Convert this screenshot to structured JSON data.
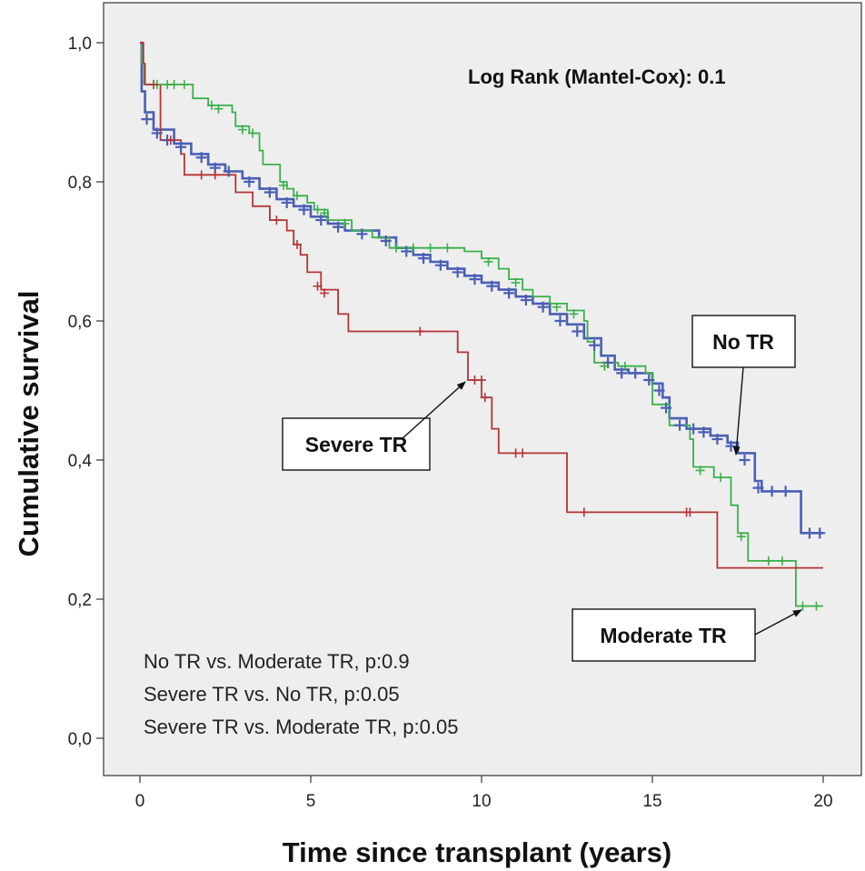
{
  "chart_data": {
    "type": "line",
    "subtype": "kaplan-meier",
    "title": "",
    "xlabel": "Time since transplant (years)",
    "ylabel": "Cumulative survival",
    "xlim": [
      0,
      20
    ],
    "ylim": [
      0,
      1
    ],
    "x_ticks": [
      0,
      5,
      10,
      15,
      20
    ],
    "x_tick_labels": [
      "0",
      "5",
      "10",
      "15",
      "20"
    ],
    "y_ticks": [
      0,
      0.2,
      0.4,
      0.6,
      0.8,
      1.0
    ],
    "y_tick_labels": [
      "0,0",
      "0,2",
      "0,4",
      "0,6",
      "0,8",
      "1,0"
    ],
    "grid": false,
    "annotation_top": "Log Rank (Mantel-Cox): 0.1",
    "annotations_bottom": [
      "No TR vs. Moderate TR, p:0.9",
      "Severe TR vs. No TR, p:0.05",
      "Severe TR vs. Moderate TR, p:0.05"
    ],
    "series": [
      {
        "name": "No TR",
        "color": "#4a5fb4",
        "points": [
          [
            0,
            1.0
          ],
          [
            0.05,
            0.93
          ],
          [
            0.15,
            0.9
          ],
          [
            0.4,
            0.875
          ],
          [
            1,
            0.855
          ],
          [
            1.5,
            0.84
          ],
          [
            2,
            0.825
          ],
          [
            2.5,
            0.815
          ],
          [
            3,
            0.805
          ],
          [
            3.5,
            0.79
          ],
          [
            4,
            0.775
          ],
          [
            4.5,
            0.765
          ],
          [
            5,
            0.75
          ],
          [
            5.5,
            0.74
          ],
          [
            6,
            0.73
          ],
          [
            7,
            0.72
          ],
          [
            7.5,
            0.705
          ],
          [
            8,
            0.695
          ],
          [
            8.5,
            0.685
          ],
          [
            9,
            0.675
          ],
          [
            9.5,
            0.665
          ],
          [
            10,
            0.655
          ],
          [
            10.5,
            0.645
          ],
          [
            11,
            0.635
          ],
          [
            11.5,
            0.625
          ],
          [
            12,
            0.61
          ],
          [
            12.5,
            0.595
          ],
          [
            13,
            0.575
          ],
          [
            13.5,
            0.55
          ],
          [
            13.9,
            0.53
          ],
          [
            14.3,
            0.525
          ],
          [
            15,
            0.51
          ],
          [
            15.3,
            0.49
          ],
          [
            15.5,
            0.46
          ],
          [
            16,
            0.445
          ],
          [
            16.7,
            0.435
          ],
          [
            17.2,
            0.425
          ],
          [
            17.5,
            0.41
          ],
          [
            18,
            0.37
          ],
          [
            18.2,
            0.355
          ],
          [
            19.3,
            0.355
          ],
          [
            19.35,
            0.295
          ],
          [
            20,
            0.295
          ]
        ],
        "censor_marks": [
          [
            0.2,
            0.89
          ],
          [
            0.5,
            0.87
          ],
          [
            0.8,
            0.86
          ],
          [
            1.2,
            0.85
          ],
          [
            1.8,
            0.835
          ],
          [
            2.2,
            0.82
          ],
          [
            2.6,
            0.815
          ],
          [
            3.2,
            0.8
          ],
          [
            3.8,
            0.785
          ],
          [
            4.3,
            0.77
          ],
          [
            4.8,
            0.76
          ],
          [
            5.3,
            0.745
          ],
          [
            5.8,
            0.735
          ],
          [
            6.5,
            0.725
          ],
          [
            7.2,
            0.715
          ],
          [
            7.8,
            0.7
          ],
          [
            8.3,
            0.69
          ],
          [
            8.8,
            0.68
          ],
          [
            9.3,
            0.67
          ],
          [
            9.8,
            0.66
          ],
          [
            10.3,
            0.65
          ],
          [
            10.8,
            0.64
          ],
          [
            11.3,
            0.63
          ],
          [
            11.8,
            0.62
          ],
          [
            12.3,
            0.6
          ],
          [
            12.8,
            0.585
          ],
          [
            13.3,
            0.565
          ],
          [
            13.7,
            0.54
          ],
          [
            14.1,
            0.525
          ],
          [
            14.5,
            0.525
          ],
          [
            14.9,
            0.515
          ],
          [
            15.2,
            0.5
          ],
          [
            15.4,
            0.475
          ],
          [
            15.8,
            0.45
          ],
          [
            16.2,
            0.445
          ],
          [
            16.5,
            0.44
          ],
          [
            16.9,
            0.43
          ],
          [
            17.3,
            0.42
          ],
          [
            17.7,
            0.4
          ],
          [
            18.1,
            0.36
          ],
          [
            18.5,
            0.355
          ],
          [
            18.9,
            0.355
          ],
          [
            19.6,
            0.295
          ],
          [
            19.9,
            0.295
          ]
        ]
      },
      {
        "name": "Moderate TR",
        "color": "#3ab04a",
        "points": [
          [
            0,
            1.0
          ],
          [
            0.05,
            0.97
          ],
          [
            0.12,
            0.94
          ],
          [
            1.5,
            0.94
          ],
          [
            1.55,
            0.92
          ],
          [
            2,
            0.91
          ],
          [
            2.7,
            0.9
          ],
          [
            2.8,
            0.88
          ],
          [
            3.2,
            0.87
          ],
          [
            3.5,
            0.845
          ],
          [
            3.6,
            0.825
          ],
          [
            4.1,
            0.8
          ],
          [
            4.3,
            0.79
          ],
          [
            4.5,
            0.78
          ],
          [
            4.9,
            0.77
          ],
          [
            5.1,
            0.76
          ],
          [
            5.5,
            0.745
          ],
          [
            6.2,
            0.73
          ],
          [
            6.8,
            0.72
          ],
          [
            7.3,
            0.705
          ],
          [
            8.2,
            0.705
          ],
          [
            9.5,
            0.7
          ],
          [
            10,
            0.69
          ],
          [
            10.5,
            0.675
          ],
          [
            10.8,
            0.66
          ],
          [
            11.2,
            0.645
          ],
          [
            11.5,
            0.635
          ],
          [
            12,
            0.625
          ],
          [
            12.5,
            0.615
          ],
          [
            13,
            0.6
          ],
          [
            13.1,
            0.57
          ],
          [
            13.3,
            0.54
          ],
          [
            14,
            0.535
          ],
          [
            14.8,
            0.525
          ],
          [
            15,
            0.48
          ],
          [
            15.5,
            0.45
          ],
          [
            16.1,
            0.43
          ],
          [
            16.2,
            0.39
          ],
          [
            16.8,
            0.375
          ],
          [
            17.2,
            0.375
          ],
          [
            17.3,
            0.335
          ],
          [
            17.5,
            0.295
          ],
          [
            17.8,
            0.255
          ],
          [
            19.1,
            0.255
          ],
          [
            19.2,
            0.19
          ],
          [
            20,
            0.19
          ]
        ],
        "censor_marks": [
          [
            0.5,
            0.94
          ],
          [
            0.8,
            0.94
          ],
          [
            1.0,
            0.94
          ],
          [
            1.3,
            0.94
          ],
          [
            2.1,
            0.91
          ],
          [
            2.3,
            0.905
          ],
          [
            3.0,
            0.875
          ],
          [
            3.3,
            0.87
          ],
          [
            4.2,
            0.795
          ],
          [
            4.6,
            0.78
          ],
          [
            5.2,
            0.76
          ],
          [
            5.4,
            0.755
          ],
          [
            6.0,
            0.74
          ],
          [
            7.5,
            0.705
          ],
          [
            8.0,
            0.705
          ],
          [
            8.5,
            0.705
          ],
          [
            9.0,
            0.705
          ],
          [
            10.2,
            0.685
          ],
          [
            11.0,
            0.655
          ],
          [
            12.2,
            0.62
          ],
          [
            12.7,
            0.61
          ],
          [
            13.6,
            0.535
          ],
          [
            14.2,
            0.535
          ],
          [
            16.4,
            0.385
          ],
          [
            17.0,
            0.375
          ],
          [
            17.6,
            0.29
          ],
          [
            18.4,
            0.255
          ],
          [
            18.8,
            0.255
          ],
          [
            19.4,
            0.19
          ],
          [
            19.8,
            0.19
          ]
        ]
      },
      {
        "name": "Severe TR",
        "color": "#b33535",
        "points": [
          [
            0,
            1.0
          ],
          [
            0.1,
            0.97
          ],
          [
            0.15,
            0.94
          ],
          [
            0.5,
            0.94
          ],
          [
            0.6,
            0.86
          ],
          [
            1.0,
            0.86
          ],
          [
            1.2,
            0.84
          ],
          [
            1.3,
            0.81
          ],
          [
            2.6,
            0.81
          ],
          [
            2.8,
            0.785
          ],
          [
            3.3,
            0.765
          ],
          [
            3.8,
            0.745
          ],
          [
            4.3,
            0.73
          ],
          [
            4.5,
            0.71
          ],
          [
            4.7,
            0.695
          ],
          [
            4.9,
            0.67
          ],
          [
            5.3,
            0.645
          ],
          [
            5.8,
            0.61
          ],
          [
            6.1,
            0.585
          ],
          [
            8.9,
            0.585
          ],
          [
            9.3,
            0.555
          ],
          [
            9.6,
            0.515
          ],
          [
            10.0,
            0.49
          ],
          [
            10.3,
            0.445
          ],
          [
            10.5,
            0.41
          ],
          [
            12.1,
            0.41
          ],
          [
            12.5,
            0.325
          ],
          [
            16.7,
            0.325
          ],
          [
            16.9,
            0.245
          ],
          [
            20,
            0.245
          ]
        ],
        "censor_marks": [
          [
            0.4,
            0.94
          ],
          [
            0.9,
            0.86
          ],
          [
            1.8,
            0.81
          ],
          [
            2.2,
            0.81
          ],
          [
            4.0,
            0.745
          ],
          [
            4.6,
            0.71
          ],
          [
            5.2,
            0.65
          ],
          [
            5.4,
            0.64
          ],
          [
            8.2,
            0.585
          ],
          [
            9.8,
            0.515
          ],
          [
            10.0,
            0.515
          ],
          [
            10.1,
            0.49
          ],
          [
            11.0,
            0.41
          ],
          [
            11.2,
            0.41
          ],
          [
            13.0,
            0.325
          ],
          [
            16.0,
            0.325
          ],
          [
            16.1,
            0.325
          ]
        ]
      }
    ],
    "callouts": [
      {
        "label": "No TR"
      },
      {
        "label": "Severe TR"
      },
      {
        "label": "Moderate TR"
      }
    ]
  }
}
